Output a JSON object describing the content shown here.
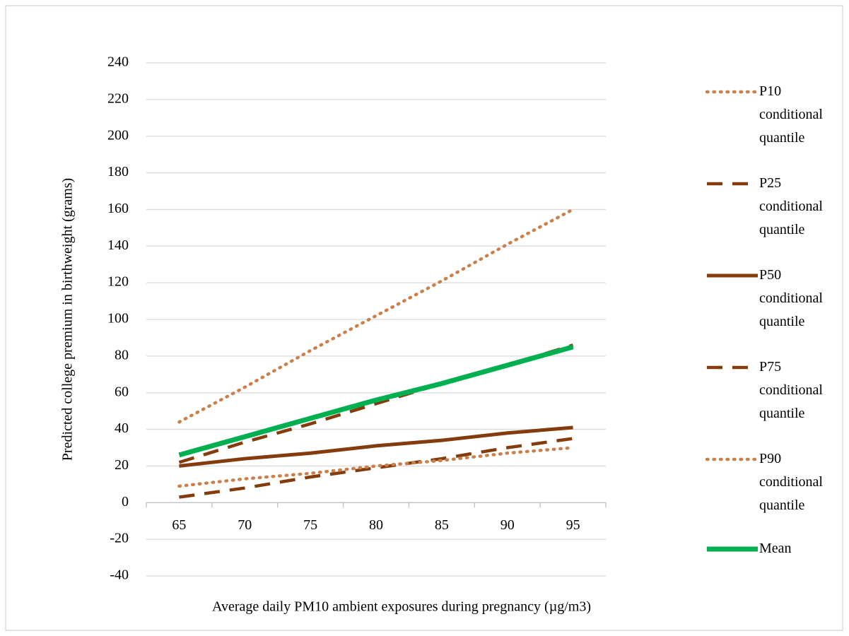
{
  "chart_data": {
    "type": "line",
    "x_label": "Average daily PM10 ambient exposures during pregnancy (µg/m3)",
    "y_label": "Predicted college premium in birthweight (grams)",
    "categories": [
      "65",
      "70",
      "75",
      "80",
      "85",
      "90",
      "95"
    ],
    "series": [
      {
        "name": "P10 conditional quantile",
        "color": "#c9804b",
        "style": "dotted",
        "values": [
          44,
          63,
          83,
          102,
          121,
          141,
          160
        ]
      },
      {
        "name": "P25 conditional quantile",
        "color": "#843c0c",
        "style": "dashed",
        "values": [
          22,
          33,
          43,
          54,
          65,
          75,
          86
        ]
      },
      {
        "name": "P50 conditional quantile",
        "color": "#843c0c",
        "style": "solid",
        "values": [
          20,
          24,
          27,
          31,
          34,
          38,
          41
        ]
      },
      {
        "name": "P75 conditional quantile",
        "color": "#843c0c",
        "style": "dashed",
        "values": [
          3,
          8,
          14,
          19,
          24,
          30,
          35
        ]
      },
      {
        "name": "P90 conditional quantile",
        "color": "#c9804b",
        "style": "dotted",
        "values": [
          9,
          13,
          16,
          20,
          23,
          27,
          30
        ]
      },
      {
        "name": "Mean",
        "color": "#00b050",
        "style": "solid",
        "values": [
          26,
          36,
          46,
          56,
          65,
          75,
          85
        ]
      }
    ],
    "ylim": [
      -40,
      240
    ],
    "yticks": [
      -40,
      -20,
      0,
      20,
      40,
      60,
      80,
      100,
      120,
      140,
      160,
      180,
      200,
      220,
      240
    ],
    "grid": true,
    "legend": "right"
  }
}
